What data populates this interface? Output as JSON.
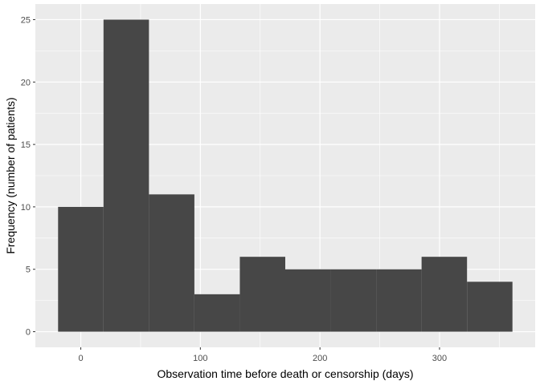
{
  "chart_data": {
    "type": "bar",
    "subtype": "histogram",
    "bins": [
      {
        "x0": -19,
        "x1": 19,
        "value": 10
      },
      {
        "x0": 19,
        "x1": 57,
        "value": 25
      },
      {
        "x0": 57,
        "x1": 95,
        "value": 11
      },
      {
        "x0": 95,
        "x1": 133,
        "value": 3
      },
      {
        "x0": 133,
        "x1": 171,
        "value": 6
      },
      {
        "x0": 171,
        "x1": 209,
        "value": 5
      },
      {
        "x0": 209,
        "x1": 247,
        "value": 5
      },
      {
        "x0": 247,
        "x1": 285,
        "value": 5
      },
      {
        "x0": 285,
        "x1": 323,
        "value": 6
      },
      {
        "x0": 323,
        "x1": 361,
        "value": 4
      }
    ],
    "xlabel": "Observation time before death or censorship (days)",
    "ylabel": "Frequency (number of patients)",
    "xlim": [
      -38,
      380
    ],
    "ylim": [
      -1.25,
      26.25
    ],
    "xticks": [
      0,
      100,
      200,
      300
    ],
    "yticks": [
      0,
      5,
      10,
      15,
      20,
      25
    ],
    "grid": true,
    "legend": "none",
    "colors": {
      "bar_fill": "#474747",
      "panel_background": "#ebebeb",
      "grid_major": "#ffffff",
      "tick_label": "#4d4d4d",
      "tick_mark": "#333333"
    }
  }
}
